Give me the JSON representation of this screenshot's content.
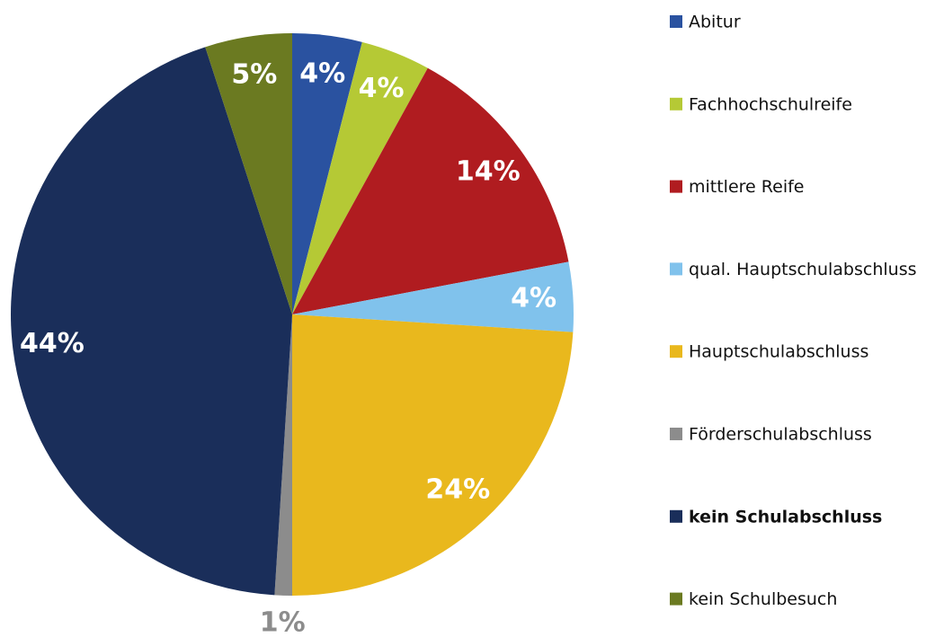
{
  "chart_data": {
    "type": "pie",
    "categories": [
      "Abitur",
      "Fachhochschulreife",
      "mittlere Reife",
      "qual. Hauptschulabschluss",
      "Hauptschulabschluss",
      "Förderschulabschluss",
      "kein Schulabschluss",
      "kein Schulbesuch"
    ],
    "values": [
      4,
      4,
      14,
      4,
      24,
      1,
      44,
      5
    ],
    "value_labels": [
      "4%",
      "4%",
      "14%",
      "4%",
      "24%",
      "1%",
      "44%",
      "5%"
    ],
    "colors": [
      "#2a52a0",
      "#b5c935",
      "#b01c20",
      "#80c2ec",
      "#e9b81d",
      "#8c8c8c",
      "#1a2e5a",
      "#6b7a21"
    ],
    "outside_labels": [
      5
    ],
    "legend_bold": [
      6
    ],
    "legend": "right"
  }
}
